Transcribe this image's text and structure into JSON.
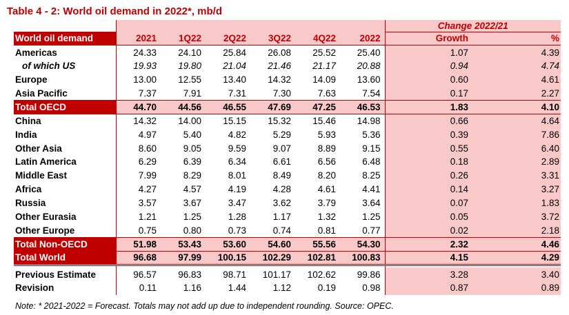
{
  "title": "Table 4 - 2: World oil demand in 2022*, mb/d",
  "header": {
    "label": "World oil demand",
    "cols": [
      "2021",
      "1Q22",
      "2Q22",
      "3Q22",
      "4Q22",
      "2022"
    ],
    "change_title": "Change 2022/21",
    "growth": "Growth",
    "pct": "%"
  },
  "rows": [
    {
      "label": "Americas",
      "vals": [
        "24.33",
        "24.10",
        "25.84",
        "26.08",
        "25.52",
        "25.40",
        "1.07",
        "4.39"
      ]
    },
    {
      "label": "of which US",
      "vals": [
        "19.93",
        "19.80",
        "21.04",
        "21.46",
        "21.17",
        "20.88",
        "0.94",
        "4.74"
      ]
    },
    {
      "label": "Europe",
      "vals": [
        "13.00",
        "12.55",
        "13.40",
        "14.32",
        "14.09",
        "13.60",
        "0.60",
        "4.61"
      ]
    },
    {
      "label": "Asia Pacific",
      "vals": [
        "7.37",
        "7.91",
        "7.31",
        "7.30",
        "7.63",
        "7.54",
        "0.17",
        "2.27"
      ]
    },
    {
      "label": "Total OECD",
      "vals": [
        "44.70",
        "44.56",
        "46.55",
        "47.69",
        "47.25",
        "46.53",
        "1.83",
        "4.10"
      ]
    },
    {
      "label": "China",
      "vals": [
        "14.32",
        "14.00",
        "15.15",
        "15.32",
        "15.46",
        "14.98",
        "0.66",
        "4.64"
      ]
    },
    {
      "label": "India",
      "vals": [
        "4.97",
        "5.40",
        "4.82",
        "5.29",
        "5.93",
        "5.36",
        "0.39",
        "7.86"
      ]
    },
    {
      "label": "Other Asia",
      "vals": [
        "8.60",
        "9.05",
        "9.59",
        "9.07",
        "8.89",
        "9.15",
        "0.55",
        "6.40"
      ]
    },
    {
      "label": "Latin America",
      "vals": [
        "6.29",
        "6.39",
        "6.34",
        "6.61",
        "6.56",
        "6.48",
        "0.18",
        "2.89"
      ]
    },
    {
      "label": "Middle East",
      "vals": [
        "7.99",
        "8.29",
        "8.01",
        "8.49",
        "8.20",
        "8.25",
        "0.26",
        "3.31"
      ]
    },
    {
      "label": "Africa",
      "vals": [
        "4.27",
        "4.57",
        "4.19",
        "4.28",
        "4.61",
        "4.41",
        "0.14",
        "3.27"
      ]
    },
    {
      "label": "Russia",
      "vals": [
        "3.57",
        "3.67",
        "3.47",
        "3.62",
        "3.79",
        "3.64",
        "0.07",
        "1.83"
      ]
    },
    {
      "label": "Other Eurasia",
      "vals": [
        "1.21",
        "1.25",
        "1.28",
        "1.17",
        "1.32",
        "1.25",
        "0.05",
        "3.72"
      ]
    },
    {
      "label": "Other Europe",
      "vals": [
        "0.75",
        "0.80",
        "0.73",
        "0.74",
        "0.81",
        "0.77",
        "0.02",
        "2.18"
      ]
    },
    {
      "label": "Total Non-OECD",
      "vals": [
        "51.98",
        "53.43",
        "53.60",
        "54.60",
        "55.56",
        "54.30",
        "2.32",
        "4.46"
      ]
    },
    {
      "label": "Total World",
      "vals": [
        "96.68",
        "97.99",
        "100.15",
        "102.29",
        "102.81",
        "100.83",
        "4.15",
        "4.29"
      ]
    },
    {
      "label": "Previous Estimate",
      "vals": [
        "96.57",
        "96.83",
        "98.71",
        "101.17",
        "102.62",
        "99.86",
        "3.28",
        "3.40"
      ]
    },
    {
      "label": "Revision",
      "vals": [
        "0.11",
        "1.16",
        "1.44",
        "1.12",
        "0.19",
        "0.98",
        "0.87",
        "0.89"
      ]
    }
  ],
  "note": "Note: * 2021-2022 = Forecast. Totals may not add up due to independent rounding. Source: OPEC."
}
